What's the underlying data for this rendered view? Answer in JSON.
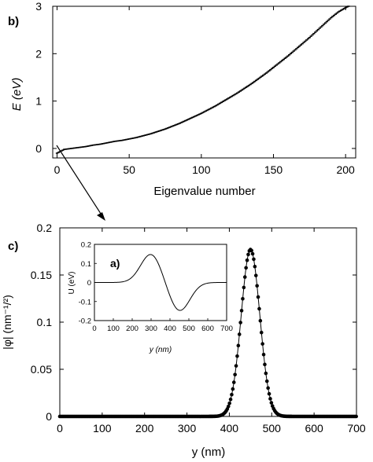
{
  "chart_data": [
    {
      "panel_label": "b)",
      "type": "scatter",
      "xlabel": "Eigenvalue number",
      "ylabel": "E (eV)",
      "xlim": [
        -3,
        207
      ],
      "ylim": [
        -0.2,
        3.0
      ],
      "x_ticks": [
        "0",
        "50",
        "100",
        "150",
        "200"
      ],
      "y_ticks": [
        "0",
        "1",
        "2",
        "3"
      ],
      "grid": false,
      "description": "Eigenvalue spectrum, one short horizontal mark per eigenvalue",
      "x": [
        0,
        5,
        10,
        15,
        20,
        25,
        30,
        35,
        40,
        45,
        50,
        55,
        60,
        65,
        70,
        75,
        80,
        85,
        90,
        95,
        100,
        105,
        110,
        115,
        120,
        125,
        130,
        135,
        140,
        145,
        150,
        155,
        160,
        165,
        170,
        175,
        180,
        185,
        190,
        195,
        200,
        202
      ],
      "y": [
        -0.1,
        -0.02,
        0.0,
        0.02,
        0.04,
        0.07,
        0.09,
        0.12,
        0.15,
        0.17,
        0.2,
        0.23,
        0.27,
        0.31,
        0.36,
        0.41,
        0.47,
        0.53,
        0.6,
        0.67,
        0.74,
        0.82,
        0.9,
        0.99,
        1.08,
        1.17,
        1.27,
        1.37,
        1.48,
        1.59,
        1.71,
        1.83,
        1.95,
        2.08,
        2.21,
        2.34,
        2.48,
        2.62,
        2.76,
        2.88,
        2.97,
        3.0
      ]
    },
    {
      "panel_label": "c)",
      "type": "line",
      "xlabel": "y  (nm)",
      "ylabel": "|φ| (nm⁻¹/²)",
      "xlim": [
        0,
        700
      ],
      "ylim": [
        0,
        0.2
      ],
      "x_ticks": [
        "0",
        "100",
        "200",
        "300",
        "400",
        "500",
        "600",
        "700"
      ],
      "y_ticks": [
        "0",
        "0.05",
        "0.1",
        "0.15",
        "0.2"
      ],
      "grid": false,
      "description": "Gaussian-like wavefunction amplitude with dot markers",
      "peak": {
        "x": 450,
        "y": 0.177,
        "sigma": 22
      }
    },
    {
      "panel_label": "a)",
      "type": "line",
      "inset": true,
      "xlabel": "y (nm)",
      "ylabel": "U (eV)",
      "xlim": [
        0,
        700
      ],
      "ylim": [
        -0.2,
        0.2
      ],
      "x_ticks": [
        "0",
        "100",
        "200",
        "300",
        "400",
        "500",
        "600",
        "700"
      ],
      "y_ticks": [
        "-0.2",
        "-0.1",
        "0",
        "0.1",
        "0.2"
      ],
      "grid": false,
      "description": "Potential profile: positive bump then negative dip",
      "bumps": [
        {
          "x": 300,
          "amp": 0.15,
          "sigma": 55
        },
        {
          "x": 450,
          "amp": -0.15,
          "sigma": 55
        }
      ]
    }
  ]
}
